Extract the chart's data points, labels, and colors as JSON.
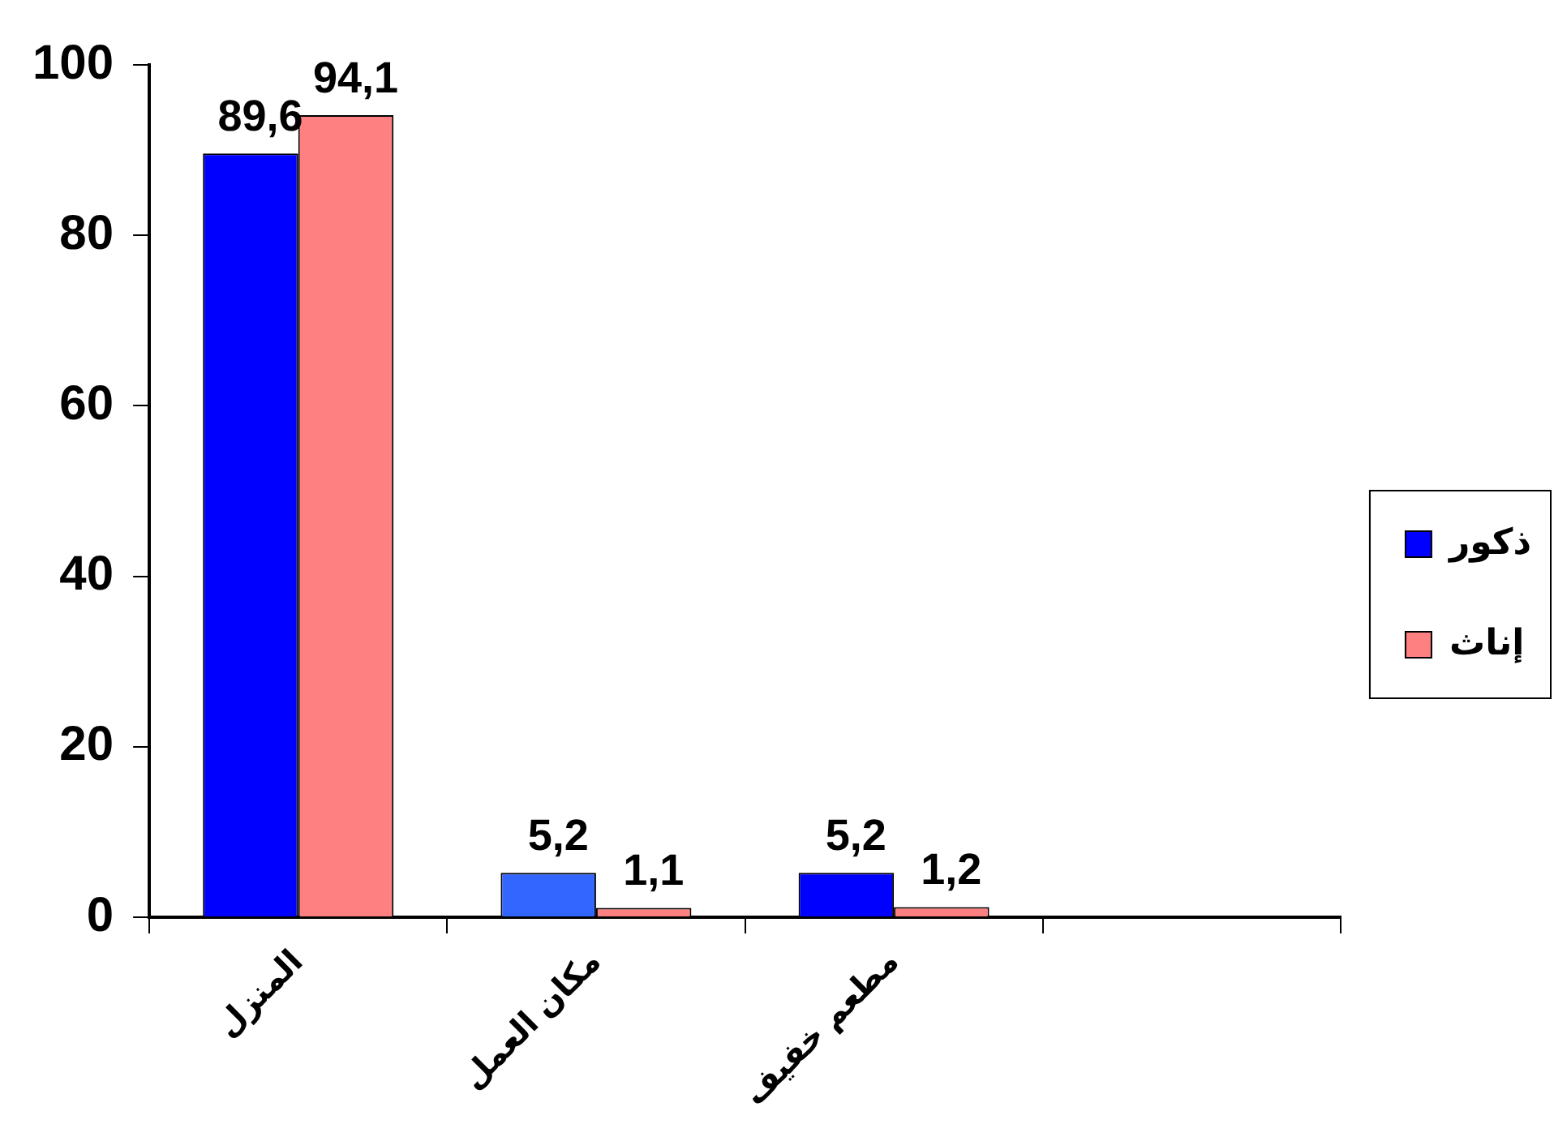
{
  "chart_data": {
    "type": "bar",
    "categories": [
      "المنزل",
      "مكان العمل",
      "مطعم خفيف",
      null
    ],
    "series": [
      {
        "name": "ذكور",
        "color": "#0000ff",
        "colors": [
          "#0000ff",
          "#3366ff",
          "#0000ff",
          "#0000ff"
        ],
        "values": [
          89.6,
          5.2,
          5.2,
          null
        ],
        "value_labels": [
          "89,6",
          "5,2",
          "5,2",
          null
        ]
      },
      {
        "name": "إناث",
        "color": "#ff8080",
        "values": [
          94.1,
          1.1,
          1.2,
          null
        ],
        "value_labels": [
          "94,1",
          "1,1",
          "1,2",
          null
        ]
      }
    ],
    "ylim": [
      0,
      100
    ],
    "yticks": [
      0,
      20,
      40,
      60,
      80,
      100
    ],
    "grid": false,
    "legend": "right"
  }
}
